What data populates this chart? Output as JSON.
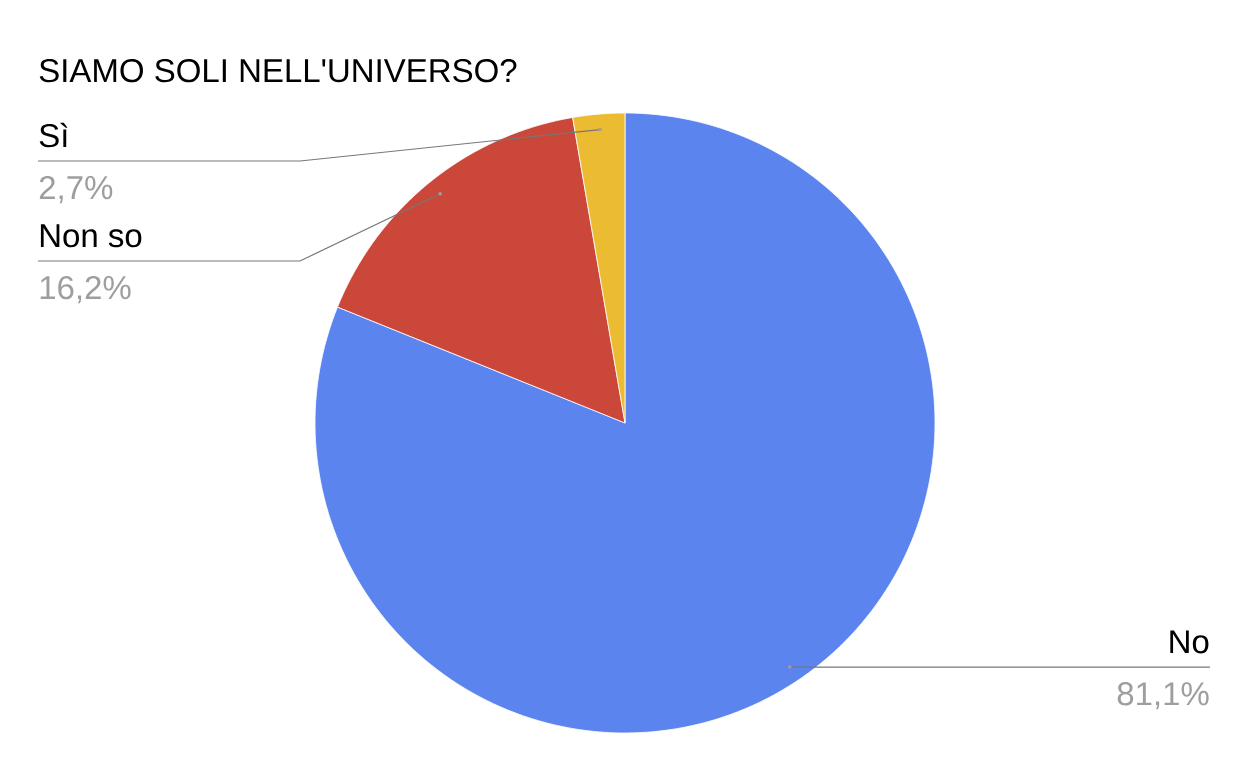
{
  "chart_data": {
    "type": "pie",
    "title": "SIAMO SOLI NELL'UNIVERSO?",
    "categories": [
      "No",
      "Non so",
      "Sì"
    ],
    "values": [
      81.1,
      16.2,
      2.7
    ],
    "colors": [
      "#5b84ef",
      "#ca4739",
      "#ebbb32"
    ],
    "value_labels": [
      "81,1%",
      "16,2%",
      "2,7%"
    ]
  }
}
